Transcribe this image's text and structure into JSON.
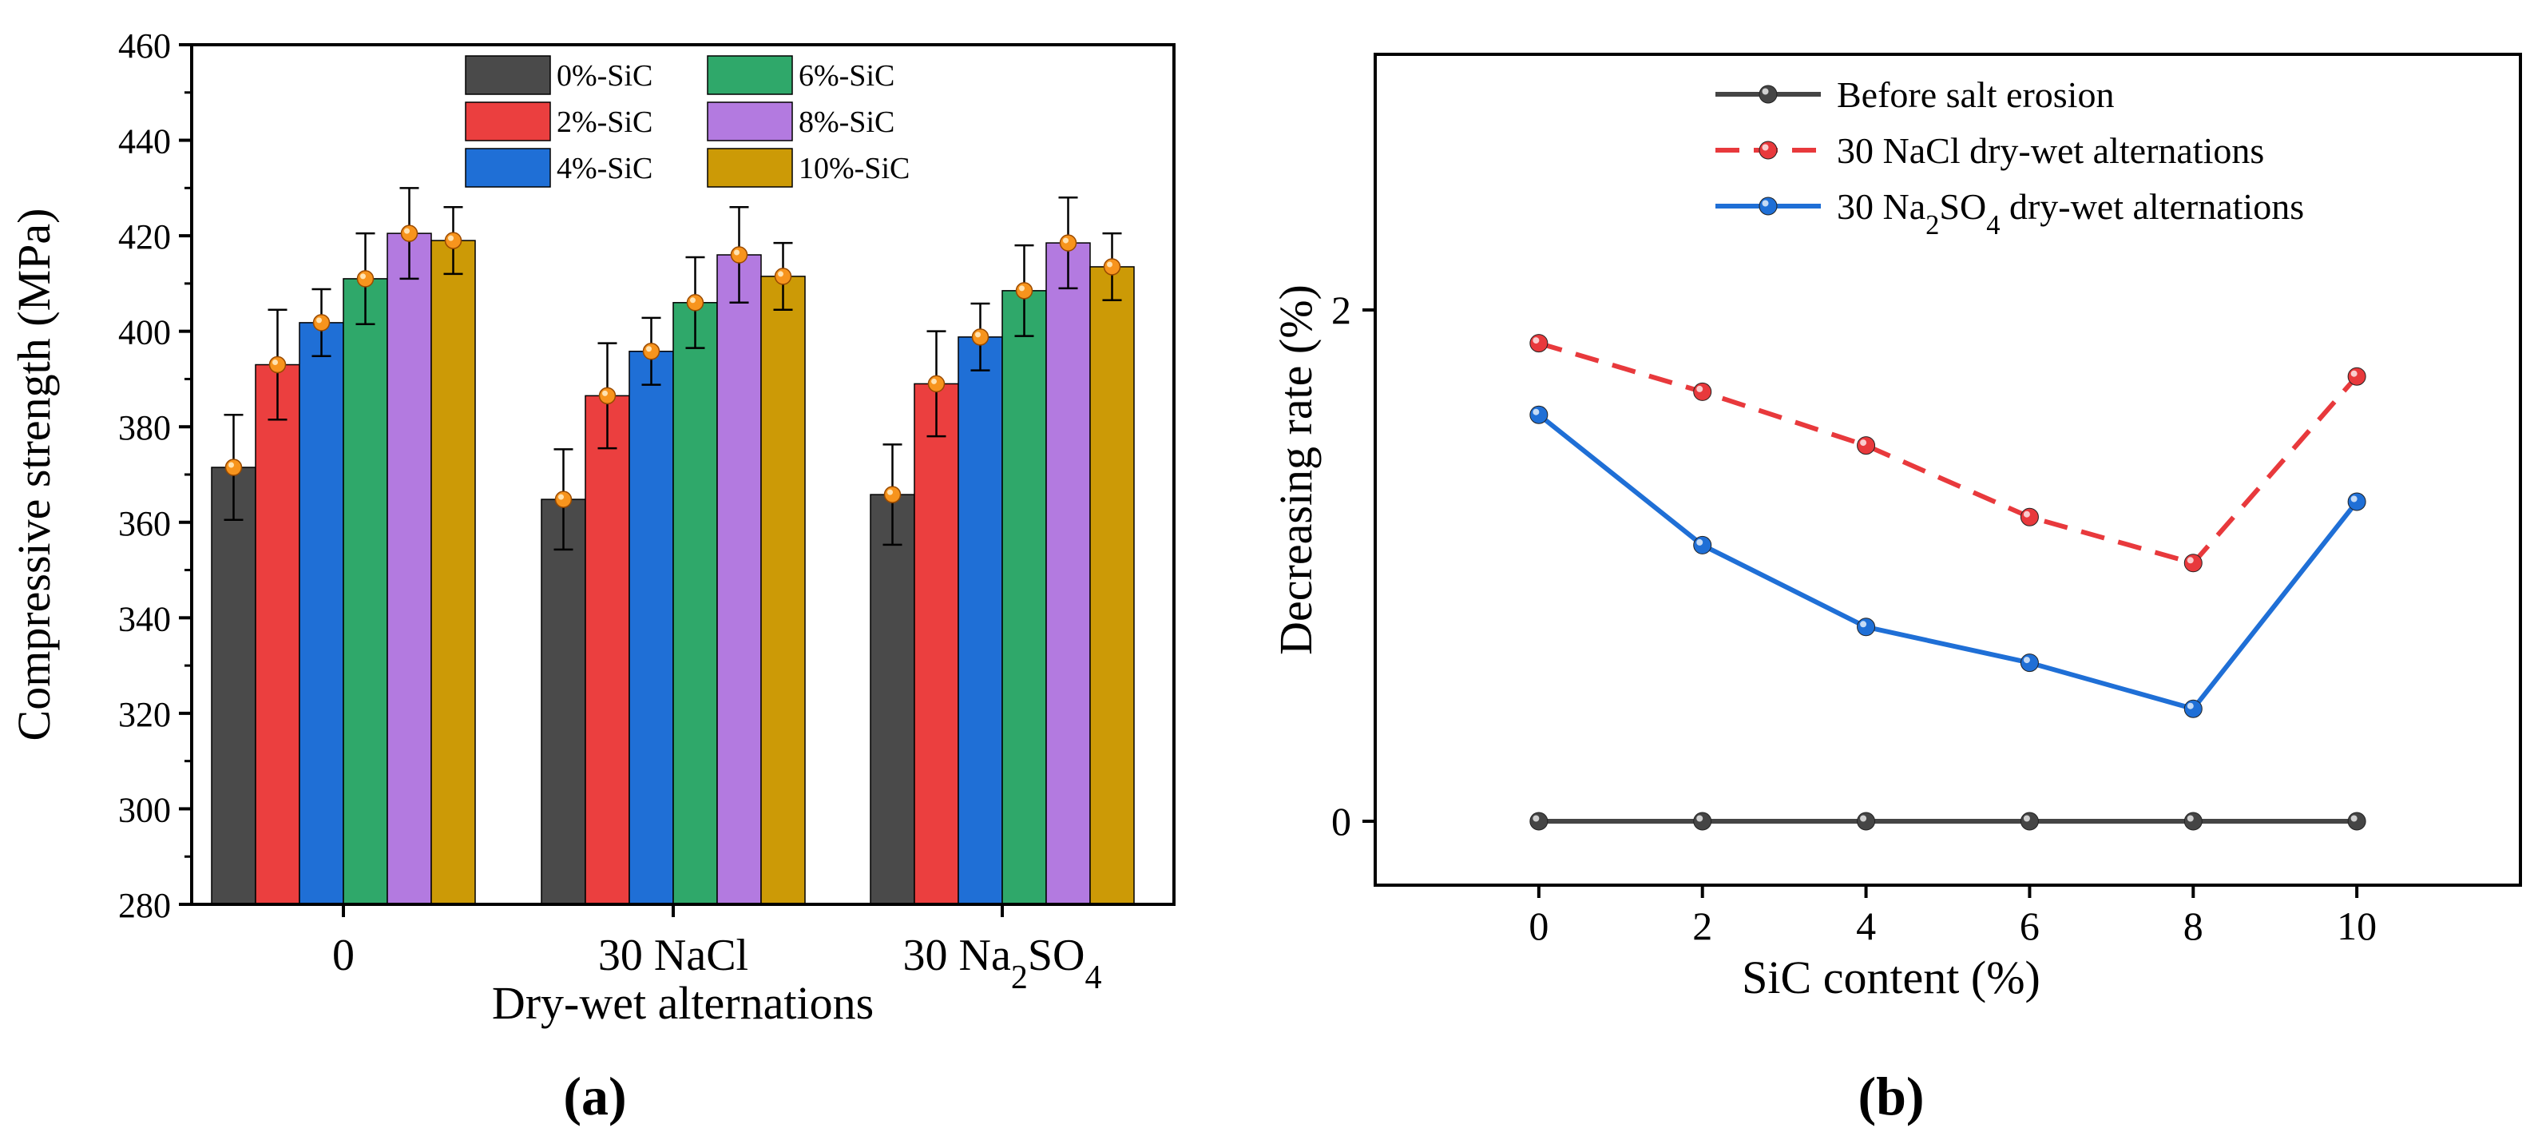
{
  "colors": {
    "sic0": "#4a4a4a",
    "sic2": "#eb3f3f",
    "sic4": "#1f6fd6",
    "sic6": "#2fa86a",
    "sic8": "#b37ae0",
    "sic10": "#cc9a06",
    "marker": "#f7941d",
    "line_before": "#454545",
    "line_nacl": "#e8393c",
    "line_na2so4": "#1f6fd6"
  },
  "chart_data": [
    {
      "panel": "a",
      "type": "bar",
      "panel_label": "(a)",
      "xlabel": "Dry-wet alternations",
      "ylabel": "Compressive strength (MPa)",
      "ylim": [
        280,
        460
      ],
      "yticks": [
        "280",
        "300",
        "320",
        "340",
        "360",
        "380",
        "400",
        "420",
        "440",
        "460"
      ],
      "categories": [
        "0",
        "30 NaCl",
        "30 Na₂SO₄"
      ],
      "series": [
        {
          "name": "0%-SiC",
          "color_key": "sic0",
          "values": [
            371.5,
            364.8,
            365.8
          ],
          "errors": [
            11,
            10.5,
            10.5
          ]
        },
        {
          "name": "2%-SiC",
          "color_key": "sic2",
          "values": [
            393,
            386.5,
            389
          ],
          "errors": [
            11.5,
            11,
            11
          ]
        },
        {
          "name": "4%-SiC",
          "color_key": "sic4",
          "values": [
            401.8,
            395.8,
            398.8
          ],
          "errors": [
            7,
            7,
            7
          ]
        },
        {
          "name": "6%-SiC",
          "color_key": "sic6",
          "values": [
            411,
            406,
            408.5
          ],
          "errors": [
            9.5,
            9.5,
            9.5
          ]
        },
        {
          "name": "8%-SiC",
          "color_key": "sic8",
          "values": [
            420.5,
            416,
            418.5
          ],
          "errors": [
            9.5,
            10,
            9.5
          ]
        },
        {
          "name": "10%-SiC",
          "color_key": "sic10",
          "values": [
            419,
            411.5,
            413.5
          ],
          "errors": [
            7,
            7,
            7
          ]
        }
      ]
    },
    {
      "panel": "b",
      "type": "line",
      "panel_label": "(b)",
      "xlabel": "SiC content (%)",
      "ylabel": "Decreasing rate (%)",
      "xlim": [
        -2,
        12
      ],
      "ylim": [
        -0.25,
        3.0
      ],
      "xticks": [
        "0",
        "2",
        "4",
        "6",
        "8",
        "10"
      ],
      "yticks": [
        "0",
        "2"
      ],
      "x": [
        0,
        2,
        4,
        6,
        8,
        10
      ],
      "series": [
        {
          "name": "Before salt erosion",
          "color_key": "line_before",
          "dashed": false,
          "values": [
            0,
            0,
            0,
            0,
            0,
            0
          ]
        },
        {
          "name": "30 NaCl dry-wet alternations",
          "color_key": "line_nacl",
          "dashed": true,
          "values": [
            1.87,
            1.68,
            1.47,
            1.19,
            1.01,
            1.74
          ]
        },
        {
          "name": "30 Na₂SO₄ dry-wet alternations",
          "color_key": "line_na2so4",
          "dashed": false,
          "values": [
            1.59,
            1.08,
            0.76,
            0.62,
            0.44,
            1.25
          ]
        }
      ]
    }
  ]
}
